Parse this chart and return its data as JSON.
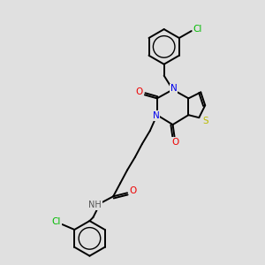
{
  "bg_color": "#e0e0e0",
  "bond_color": "#000000",
  "atom_colors": {
    "N": "#0000ee",
    "O": "#ee0000",
    "S": "#bbbb00",
    "Cl": "#00bb00",
    "H": "#555555",
    "C": "#000000"
  },
  "font_size": 7.5,
  "figsize": [
    3.0,
    3.0
  ],
  "dpi": 100
}
